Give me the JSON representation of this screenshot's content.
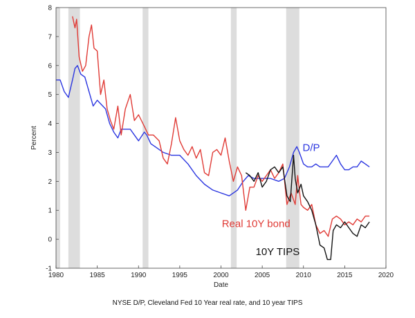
{
  "caption": "NYSE D/P, Cleveland Fed 10 Year real rate, and 10 year TIPS",
  "chart_data": {
    "type": "line",
    "title": "",
    "xlabel": "Date",
    "ylabel": "Percent",
    "xlim": [
      1980,
      2020
    ],
    "ylim": [
      -1,
      8
    ],
    "x_ticks": [
      1980,
      1985,
      1990,
      1995,
      2000,
      2005,
      2010,
      2015,
      2020
    ],
    "y_ticks": [
      -1,
      0,
      1,
      2,
      3,
      4,
      5,
      6,
      7,
      8
    ],
    "grid": false,
    "recessions": [
      [
        1980.0,
        1980.5
      ],
      [
        1981.5,
        1982.9
      ],
      [
        1990.5,
        1991.2
      ],
      [
        2001.2,
        2001.9
      ],
      [
        2007.9,
        2009.5
      ]
    ],
    "series": [
      {
        "name": "D/P",
        "color": "#2a35e0",
        "x": [
          1980.0,
          1980.5,
          1981.0,
          1981.5,
          1982.0,
          1982.3,
          1982.6,
          1983.0,
          1983.5,
          1984.0,
          1984.5,
          1985.0,
          1986.0,
          1986.5,
          1987.0,
          1987.5,
          1987.9,
          1988.5,
          1989.0,
          1989.5,
          1990.0,
          1990.7,
          1991.0,
          1991.5,
          1992.0,
          1993.0,
          1994.0,
          1995.0,
          1996.0,
          1997.0,
          1998.0,
          1999.0,
          2000.0,
          2001.0,
          2002.0,
          2002.7,
          2003.3,
          2004.0,
          2005.0,
          2006.0,
          2007.0,
          2007.7,
          2008.3,
          2008.8,
          2009.2,
          2009.5,
          2010.0,
          2010.5,
          2011.0,
          2011.5,
          2012.0,
          2012.5,
          2013.0,
          2013.5,
          2014.0,
          2014.5,
          2015.0,
          2015.5,
          2016.0,
          2016.5,
          2017.0,
          2017.5,
          2018.0
        ],
        "y": [
          5.5,
          5.5,
          5.1,
          4.9,
          5.5,
          5.9,
          6.0,
          5.7,
          5.6,
          5.1,
          4.6,
          4.8,
          4.5,
          4.0,
          3.7,
          3.5,
          3.8,
          3.8,
          3.8,
          3.6,
          3.4,
          3.7,
          3.6,
          3.3,
          3.2,
          3.0,
          2.9,
          2.9,
          2.6,
          2.2,
          1.9,
          1.7,
          1.6,
          1.5,
          1.7,
          2.0,
          2.2,
          2.1,
          2.1,
          2.1,
          2.0,
          2.1,
          2.5,
          3.0,
          3.2,
          3.0,
          2.6,
          2.5,
          2.5,
          2.6,
          2.5,
          2.5,
          2.5,
          2.7,
          2.9,
          2.6,
          2.4,
          2.4,
          2.5,
          2.5,
          2.7,
          2.6,
          2.5
        ]
      },
      {
        "name": "Real 10Y bond",
        "color": "#e03a35",
        "x": [
          1982.0,
          1982.3,
          1982.5,
          1982.8,
          1983.2,
          1983.6,
          1984.0,
          1984.3,
          1984.6,
          1985.0,
          1985.4,
          1985.8,
          1986.2,
          1986.6,
          1987.0,
          1987.5,
          1987.9,
          1988.4,
          1989.0,
          1989.5,
          1990.0,
          1990.7,
          1991.2,
          1991.8,
          1992.5,
          1993.0,
          1993.5,
          1994.0,
          1994.5,
          1995.0,
          1995.5,
          1996.0,
          1996.5,
          1997.0,
          1997.5,
          1998.0,
          1998.5,
          1999.0,
          1999.5,
          2000.0,
          2000.5,
          2001.0,
          2001.5,
          2002.0,
          2002.5,
          2003.0,
          2003.5,
          2004.0,
          2004.5,
          2005.0,
          2005.5,
          2006.0,
          2006.5,
          2007.0,
          2007.5,
          2008.0,
          2008.5,
          2009.0,
          2009.3,
          2009.7,
          2010.0,
          2010.5,
          2011.0,
          2011.5,
          2012.0,
          2012.5,
          2013.0,
          2013.5,
          2014.0,
          2014.5,
          2015.0,
          2015.5,
          2016.0,
          2016.5,
          2017.0,
          2017.5,
          2018.0
        ],
        "y": [
          7.7,
          7.3,
          7.6,
          6.3,
          5.8,
          6.0,
          7.0,
          7.4,
          6.6,
          6.5,
          5.0,
          5.5,
          4.5,
          4.1,
          3.8,
          4.6,
          3.6,
          4.5,
          5.0,
          4.1,
          4.3,
          3.9,
          3.6,
          3.6,
          3.4,
          2.8,
          2.6,
          3.3,
          4.2,
          3.4,
          3.1,
          2.9,
          3.2,
          2.8,
          3.1,
          2.3,
          2.2,
          3.0,
          3.1,
          2.9,
          3.5,
          2.7,
          2.0,
          2.5,
          2.2,
          1.0,
          1.8,
          1.8,
          2.2,
          2.0,
          2.2,
          2.4,
          2.1,
          2.3,
          2.6,
          1.2,
          1.6,
          1.2,
          2.2,
          1.2,
          1.1,
          1.0,
          1.2,
          0.5,
          0.2,
          0.3,
          0.1,
          0.7,
          0.8,
          0.7,
          0.5,
          0.6,
          0.5,
          0.7,
          0.6,
          0.8,
          0.8
        ]
      },
      {
        "name": "10Y TIPS",
        "color": "#111111",
        "x": [
          2003.0,
          2003.5,
          2004.0,
          2004.5,
          2005.0,
          2005.5,
          2006.0,
          2006.5,
          2007.0,
          2007.5,
          2008.0,
          2008.4,
          2008.8,
          2009.0,
          2009.3,
          2009.7,
          2010.0,
          2010.5,
          2011.0,
          2011.5,
          2012.0,
          2012.5,
          2012.9,
          2013.3,
          2013.6,
          2014.0,
          2014.5,
          2015.0,
          2015.5,
          2016.0,
          2016.5,
          2017.0,
          2017.5,
          2018.0
        ],
        "y": [
          2.3,
          2.2,
          2.0,
          2.3,
          1.8,
          2.0,
          2.4,
          2.5,
          2.3,
          2.5,
          1.5,
          1.3,
          2.9,
          2.1,
          1.6,
          1.9,
          1.5,
          1.3,
          1.0,
          0.5,
          -0.2,
          -0.3,
          -0.7,
          -0.7,
          0.3,
          0.5,
          0.4,
          0.6,
          0.4,
          0.2,
          0.1,
          0.5,
          0.4,
          0.6
        ]
      }
    ],
    "annotations": [
      {
        "text": "D/P",
        "x": 2009.9,
        "y": 3.05,
        "color": "#2a35e0"
      },
      {
        "text": "Real 10Y bond",
        "x": 2000.1,
        "y": 0.42,
        "color": "#e03a35"
      },
      {
        "text": "10Y TIPS",
        "x": 2004.2,
        "y": -0.55,
        "color": "#111111"
      }
    ]
  }
}
